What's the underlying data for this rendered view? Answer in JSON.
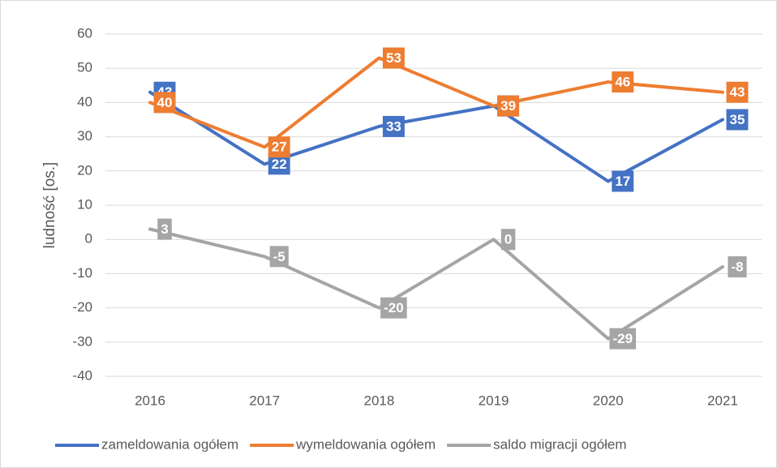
{
  "chart_data": {
    "type": "line",
    "y_label": "ludność [os.]",
    "categories": [
      "2016",
      "2017",
      "2018",
      "2019",
      "2020",
      "2021"
    ],
    "series": [
      {
        "name": "zameldowania ogółem",
        "color": "#4472c4",
        "values": [
          43,
          22,
          33,
          39,
          17,
          35
        ]
      },
      {
        "name": "wymeldowania ogółem",
        "color": "#ed7d31",
        "values": [
          40,
          27,
          53,
          39,
          46,
          43
        ]
      },
      {
        "name": "saldo migracji ogółem",
        "color": "#a5a5a5",
        "values": [
          3,
          -5,
          -20,
          0,
          -29,
          -8
        ]
      }
    ],
    "ylim": [
      -40,
      60
    ],
    "yticks": [
      -40,
      -30,
      -20,
      -10,
      0,
      10,
      20,
      30,
      40,
      50,
      60
    ],
    "grid": true,
    "legend": "bottom"
  }
}
